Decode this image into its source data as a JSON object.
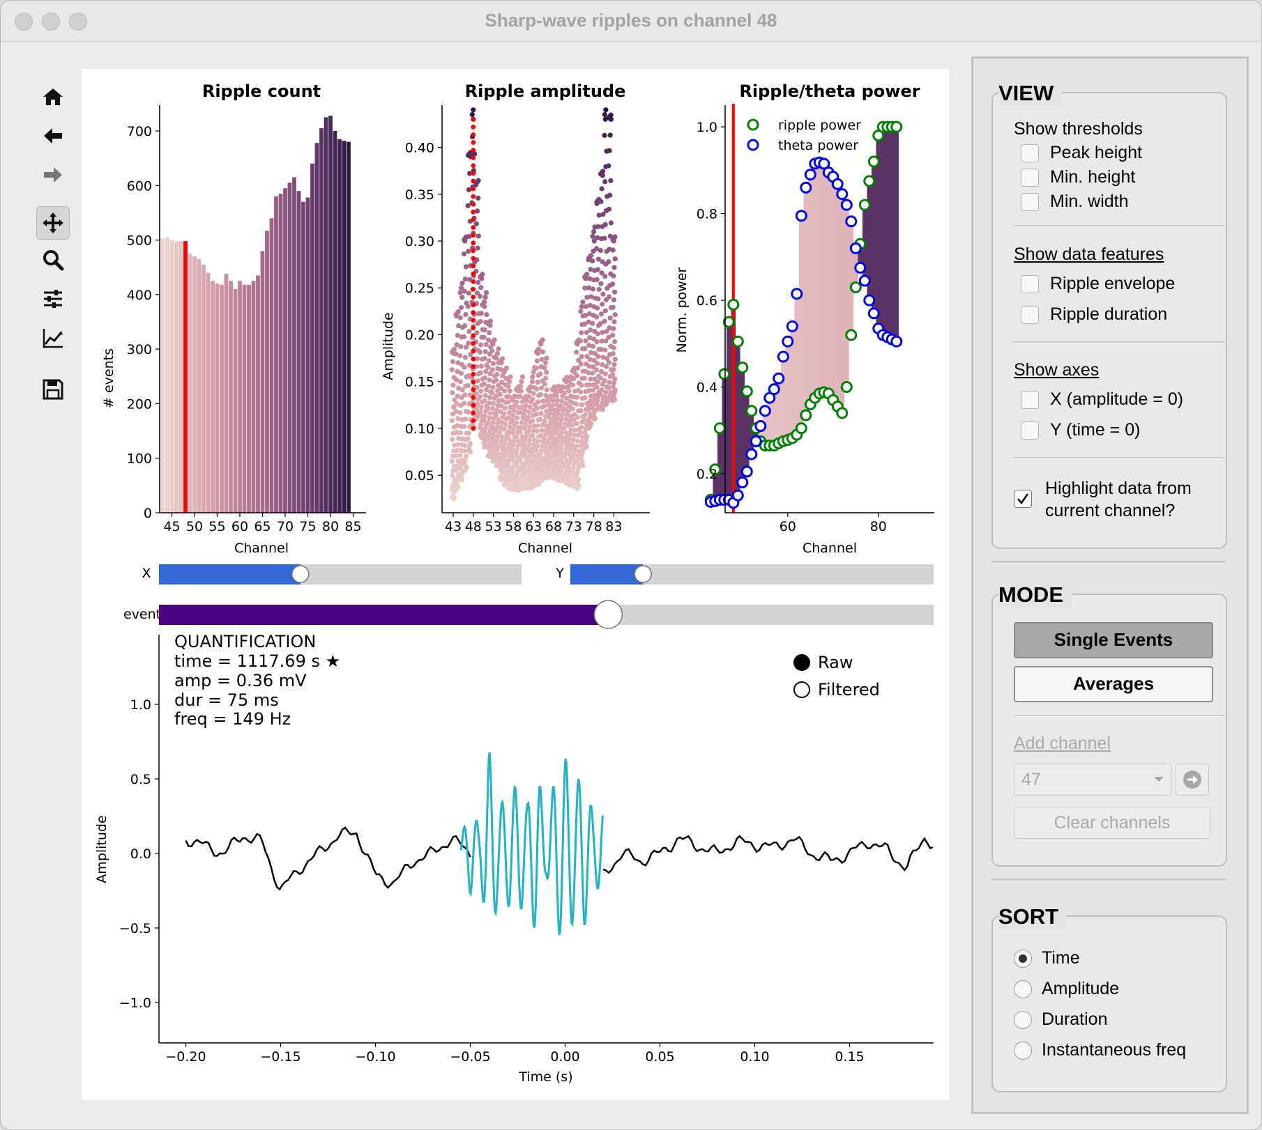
{
  "window": {
    "title": "Sharp-wave ripples on channel 48"
  },
  "toolbar": {
    "items": [
      {
        "icon": "home-icon"
      },
      {
        "icon": "back-arrow-icon"
      },
      {
        "icon": "forward-arrow-icon"
      },
      {
        "icon": "pan-move-icon"
      },
      {
        "icon": "zoom-magnifier-icon"
      },
      {
        "icon": "configure-subplots-icon"
      },
      {
        "icon": "edit-axes-curve-icon"
      },
      {
        "icon": "save-floppy-icon"
      }
    ]
  },
  "plots": {
    "ripple_count": {
      "title": "Ripple count",
      "xlabel": "Channel",
      "ylabel": "# events"
    },
    "ripple_amplitude": {
      "title": "Ripple amplitude",
      "xlabel": "Channel",
      "ylabel": "Amplitude"
    },
    "ripple_theta": {
      "title": "Ripple/theta power",
      "xlabel": "Channel",
      "ylabel": "Norm. power",
      "legend": [
        "ripple power",
        "theta power"
      ]
    },
    "trace": {
      "xlabel": "Time (s)",
      "ylabel": "Amplitude"
    }
  },
  "sliders": {
    "x_label": "X",
    "x_value": 0.39,
    "y_label": "Y",
    "y_value": 0.2,
    "event_label": "event",
    "event_value": 0.58
  },
  "quantification": {
    "title": "QUANTIFICATION",
    "time": "time = 1117.69 s ★",
    "amp": "amp = 0.36 mV",
    "dur": "dur = 75 ms",
    "freq": "freq = 149 Hz"
  },
  "trace_radio": {
    "options": [
      "Raw",
      "Filtered"
    ],
    "selected": "Raw"
  },
  "colors": {
    "highlight": "#ff0000",
    "ripple": "#1fb4c7",
    "slider_blue": "#3367d6",
    "event_purple": "#4b0082",
    "ripple_power": "#008000",
    "theta_power": "#0000ee"
  },
  "chart_data": [
    {
      "type": "bar",
      "title": "Ripple count",
      "xlabel": "Channel",
      "ylabel": "# events",
      "x": [
        43,
        44,
        45,
        46,
        47,
        48,
        49,
        50,
        51,
        52,
        53,
        54,
        55,
        56,
        57,
        58,
        59,
        60,
        61,
        62,
        63,
        64,
        65,
        66,
        67,
        68,
        69,
        70,
        71,
        72,
        73,
        74,
        75,
        76,
        77,
        78,
        79,
        80,
        81,
        82,
        83,
        84
      ],
      "values": [
        503,
        505,
        500,
        497,
        498,
        498,
        475,
        470,
        465,
        455,
        440,
        425,
        420,
        418,
        438,
        425,
        410,
        425,
        418,
        418,
        425,
        435,
        480,
        517,
        540,
        580,
        585,
        595,
        605,
        615,
        590,
        570,
        578,
        640,
        678,
        705,
        725,
        728,
        700,
        685,
        682,
        680
      ],
      "highlight_channel": 48,
      "xticks": [
        45,
        50,
        55,
        60,
        65,
        70,
        75,
        80,
        85
      ],
      "yticks": [
        0,
        100,
        200,
        300,
        400,
        500,
        600,
        700
      ],
      "ylim": [
        0,
        760
      ]
    },
    {
      "type": "scatter",
      "title": "Ripple amplitude",
      "xlabel": "Channel",
      "ylabel": "Amplitude",
      "xticks": [
        43,
        48,
        53,
        58,
        63,
        68,
        73,
        78,
        83
      ],
      "yticks": [
        0.05,
        0.1,
        0.15,
        0.2,
        0.25,
        0.3,
        0.35,
        0.4
      ],
      "ylim": [
        0.01,
        0.445
      ],
      "highlight_channel": 48,
      "channel_max": [
        [
          43,
          0.18
        ],
        [
          44,
          0.22
        ],
        [
          45,
          0.24
        ],
        [
          46,
          0.3
        ],
        [
          47,
          0.39
        ],
        [
          48,
          0.43
        ],
        [
          49,
          0.36
        ],
        [
          50,
          0.26
        ],
        [
          51,
          0.23
        ],
        [
          52,
          0.21
        ],
        [
          53,
          0.19
        ],
        [
          54,
          0.17
        ],
        [
          55,
          0.17
        ],
        [
          56,
          0.16
        ],
        [
          57,
          0.14
        ],
        [
          58,
          0.13
        ],
        [
          59,
          0.14
        ],
        [
          60,
          0.14
        ],
        [
          61,
          0.13
        ],
        [
          62,
          0.14
        ],
        [
          63,
          0.15
        ],
        [
          64,
          0.18
        ],
        [
          65,
          0.19
        ],
        [
          66,
          0.16
        ],
        [
          67,
          0.13
        ],
        [
          68,
          0.14
        ],
        [
          69,
          0.13
        ],
        [
          70,
          0.14
        ],
        [
          71,
          0.15
        ],
        [
          72,
          0.14
        ],
        [
          73,
          0.16
        ],
        [
          74,
          0.19
        ],
        [
          75,
          0.22
        ],
        [
          76,
          0.26
        ],
        [
          77,
          0.28
        ],
        [
          78,
          0.3
        ],
        [
          79,
          0.34
        ],
        [
          80,
          0.37
        ],
        [
          81,
          0.43
        ],
        [
          82,
          0.43
        ],
        [
          83,
          0.3
        ]
      ],
      "channel_min": [
        [
          43,
          0.025
        ],
        [
          44,
          0.035
        ],
        [
          45,
          0.045
        ],
        [
          46,
          0.055
        ],
        [
          47,
          0.075
        ],
        [
          48,
          0.1
        ],
        [
          49,
          0.11
        ],
        [
          50,
          0.09
        ],
        [
          51,
          0.08
        ],
        [
          52,
          0.07
        ],
        [
          53,
          0.065
        ],
        [
          54,
          0.06
        ],
        [
          55,
          0.045
        ],
        [
          56,
          0.04
        ],
        [
          57,
          0.035
        ],
        [
          58,
          0.035
        ],
        [
          59,
          0.034
        ],
        [
          60,
          0.035
        ],
        [
          61,
          0.036
        ],
        [
          62,
          0.036
        ],
        [
          63,
          0.037
        ],
        [
          64,
          0.04
        ],
        [
          65,
          0.044
        ],
        [
          66,
          0.047
        ],
        [
          67,
          0.048
        ],
        [
          68,
          0.047
        ],
        [
          69,
          0.045
        ],
        [
          70,
          0.044
        ],
        [
          71,
          0.042
        ],
        [
          72,
          0.04
        ],
        [
          73,
          0.038
        ],
        [
          74,
          0.036
        ],
        [
          75,
          0.06
        ],
        [
          76,
          0.08
        ],
        [
          77,
          0.1
        ],
        [
          78,
          0.11
        ],
        [
          79,
          0.12
        ],
        [
          80,
          0.12
        ],
        [
          81,
          0.125
        ],
        [
          82,
          0.13
        ],
        [
          83,
          0.13
        ]
      ]
    },
    {
      "type": "scatter",
      "title": "Ripple/theta power",
      "xlabel": "Channel",
      "ylabel": "Norm. power",
      "xticks": [
        60,
        80
      ],
      "yticks": [
        0.2,
        0.4,
        0.6,
        0.8,
        1.0
      ],
      "xlim": [
        42,
        86
      ],
      "ylim": [
        0.11,
        1.05
      ],
      "highlight_channel": 48,
      "series": [
        {
          "name": "ripple power",
          "x": [
            43,
            44,
            45,
            46,
            47,
            48,
            49,
            50,
            51,
            52,
            53,
            54,
            55,
            56,
            57,
            58,
            59,
            60,
            61,
            62,
            63,
            64,
            65,
            66,
            67,
            68,
            69,
            70,
            71,
            72,
            73,
            74,
            75,
            76,
            77,
            78,
            79,
            80,
            81,
            82,
            83,
            84
          ],
          "values": [
            0.14,
            0.21,
            0.305,
            0.43,
            0.55,
            0.59,
            0.505,
            0.445,
            0.39,
            0.345,
            0.305,
            0.275,
            0.265,
            0.265,
            0.265,
            0.27,
            0.275,
            0.278,
            0.282,
            0.29,
            0.305,
            0.335,
            0.36,
            0.375,
            0.385,
            0.388,
            0.385,
            0.37,
            0.355,
            0.34,
            0.4,
            0.52,
            0.63,
            0.73,
            0.82,
            0.875,
            0.92,
            0.98,
            1.0,
            1.0,
            1.0,
            1.0
          ]
        },
        {
          "name": "theta power",
          "x": [
            43,
            44,
            45,
            46,
            47,
            48,
            49,
            50,
            51,
            52,
            53,
            54,
            55,
            56,
            57,
            58,
            59,
            60,
            61,
            62,
            63,
            64,
            65,
            66,
            67,
            68,
            69,
            70,
            71,
            72,
            73,
            74,
            75,
            76,
            77,
            78,
            79,
            80,
            81,
            82,
            83,
            84
          ],
          "values": [
            0.135,
            0.137,
            0.14,
            0.14,
            0.14,
            0.133,
            0.15,
            0.18,
            0.205,
            0.245,
            0.275,
            0.31,
            0.345,
            0.375,
            0.395,
            0.42,
            0.47,
            0.505,
            0.54,
            0.615,
            0.795,
            0.86,
            0.89,
            0.915,
            0.918,
            0.915,
            0.895,
            0.885,
            0.868,
            0.845,
            0.82,
            0.782,
            0.72,
            0.675,
            0.645,
            0.6,
            0.57,
            0.535,
            0.52,
            0.515,
            0.51,
            0.505
          ]
        }
      ]
    },
    {
      "type": "line",
      "xlabel": "Time (s)",
      "ylabel": "Amplitude",
      "xticks": [
        -0.2,
        -0.15,
        -0.1,
        -0.05,
        0.0,
        0.05,
        0.1,
        0.15
      ],
      "yticks": [
        -1.0,
        -0.5,
        0.0,
        0.5,
        1.0
      ],
      "xlim": [
        -0.21,
        0.198
      ],
      "ylim": [
        -1.28,
        1.47
      ],
      "series": [
        {
          "name": "Raw",
          "x": [
            -0.2,
            -0.19,
            -0.18,
            -0.17,
            -0.16,
            -0.15,
            -0.14,
            -0.13,
            -0.12,
            -0.11,
            -0.1,
            -0.09,
            -0.08,
            -0.07,
            -0.06,
            -0.05,
            0.02,
            0.03,
            0.04,
            0.05,
            0.06,
            0.07,
            0.08,
            0.09,
            0.1,
            0.11,
            0.12,
            0.13,
            0.14,
            0.15,
            0.16,
            0.17,
            0.18,
            0.19,
            0.195
          ],
          "values": [
            0.1,
            0.05,
            0.0,
            0.12,
            0.08,
            -0.25,
            -0.1,
            0.0,
            0.12,
            0.14,
            -0.15,
            -0.2,
            -0.05,
            0.0,
            0.1,
            0.0,
            -0.15,
            0.0,
            -0.05,
            0.0,
            0.1,
            0.05,
            0.0,
            0.08,
            0.06,
            0.04,
            0.1,
            0.0,
            -0.05,
            0.0,
            0.08,
            0.02,
            -0.1,
            0.12,
            0.03
          ]
        },
        {
          "name": "Filtered",
          "x": [
            -0.055,
            -0.05,
            -0.045,
            -0.04,
            -0.035,
            -0.03,
            -0.025,
            -0.02,
            -0.015,
            -0.01,
            -0.005,
            0.0,
            0.005,
            0.01,
            0.015,
            0.02
          ],
          "values": [
            -0.05,
            0.2,
            -0.1,
            0.45,
            -0.2,
            0.25,
            -0.3,
            0.2,
            -0.4,
            0.1,
            -0.35,
            0.42,
            -0.3,
            0.35,
            -0.15,
            -0.2
          ]
        }
      ]
    }
  ],
  "sidebar": {
    "view": {
      "title": "VIEW",
      "thresholds_label": "Show thresholds",
      "thresholds": [
        "Peak height",
        "Min. height",
        "Min. width"
      ],
      "features_label": "Show data features",
      "features": [
        "Ripple envelope",
        "Ripple duration"
      ],
      "axes_label": "Show axes",
      "axes": [
        "X (amplitude = 0)",
        "Y (time = 0)"
      ],
      "highlight_line1": "Highlight data from",
      "highlight_line2": "current channel?",
      "highlight_checked": true
    },
    "mode": {
      "title": "MODE",
      "single_events": "Single Events",
      "averages": "Averages",
      "add_channel": "Add channel",
      "channel_value": "47",
      "clear_channels": "Clear channels"
    },
    "sort": {
      "title": "SORT",
      "options": [
        "Time",
        "Amplitude",
        "Duration",
        "Instantaneous freq"
      ],
      "selected": "Time"
    }
  }
}
